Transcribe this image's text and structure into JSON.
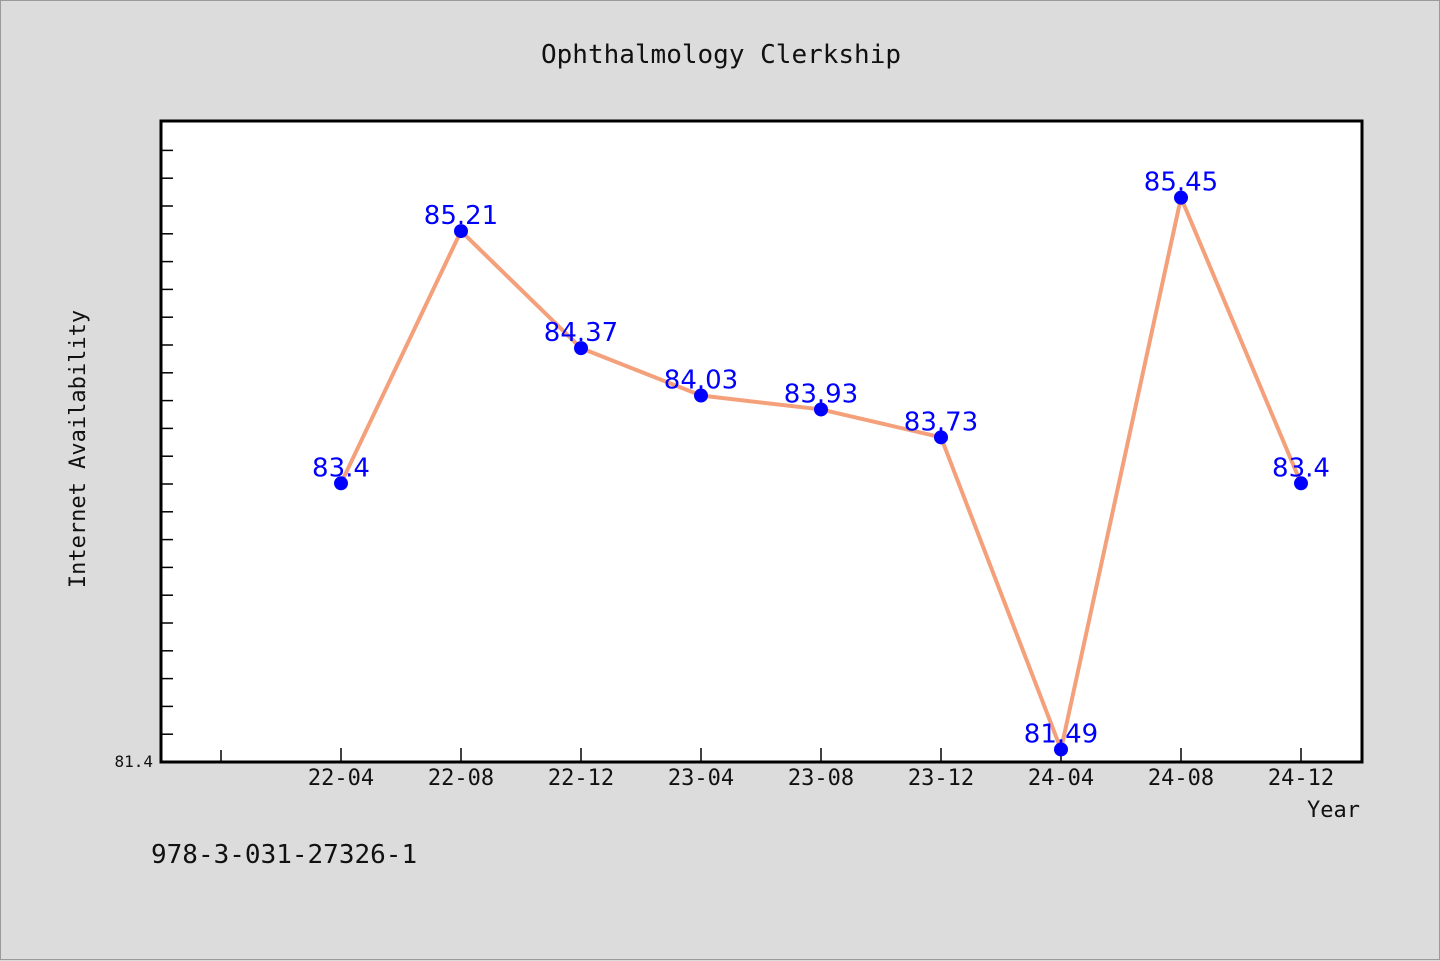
{
  "chart_data": {
    "type": "line",
    "title": "Ophthalmology Clerkship",
    "xlabel": "Year",
    "ylabel": "Internet Availability",
    "categories": [
      "22-04",
      "22-08",
      "22-12",
      "23-04",
      "23-08",
      "23-12",
      "24-04",
      "24-08",
      "24-12"
    ],
    "values": [
      83.4,
      85.21,
      84.37,
      84.03,
      83.93,
      83.73,
      81.49,
      85.45,
      83.4
    ],
    "data_labels": [
      "83.4",
      "85.21",
      "84.37",
      "84.03",
      "83.93",
      "83.73",
      "81.49",
      "85.45",
      "83.4"
    ],
    "y_min_label": "81.4",
    "ylim": [
      81.4,
      86.0
    ],
    "grid": false,
    "legend": "none",
    "colors": {
      "line": "#f4a07a",
      "marker": "#0000ff",
      "label": "#0000ff",
      "plot_bg": "#ffffff",
      "page_bg": "#dcdcdc"
    }
  },
  "footnote": "978-3-031-27326-1"
}
